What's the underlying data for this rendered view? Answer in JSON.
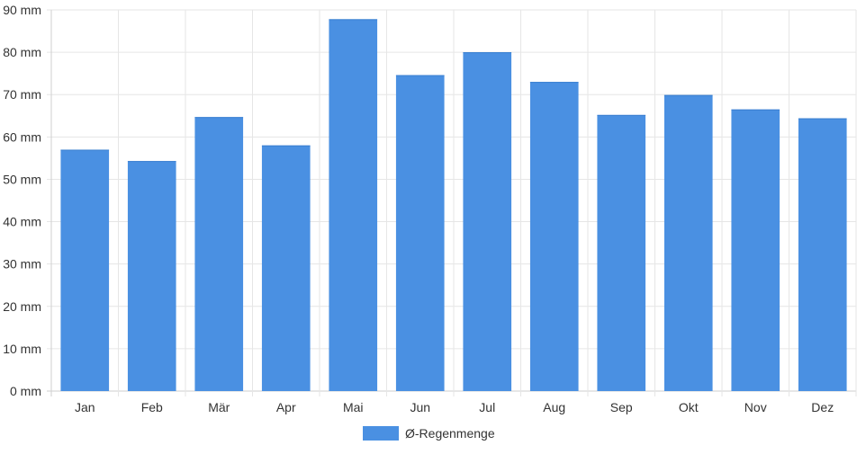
{
  "chart_data": {
    "type": "bar",
    "categories": [
      "Jan",
      "Feb",
      "Mär",
      "Apr",
      "Mai",
      "Jun",
      "Jul",
      "Aug",
      "Sep",
      "Okt",
      "Nov",
      "Dez"
    ],
    "series": [
      {
        "name": "Ø-Regenmenge",
        "values": [
          57,
          54.3,
          64.7,
          58,
          87.8,
          74.6,
          80,
          73,
          65.2,
          69.9,
          66.5,
          64.4
        ],
        "color": "#4a90e2"
      }
    ],
    "ylim": [
      0,
      90
    ],
    "yticks": [
      "0 mm",
      "10 mm",
      "20 mm",
      "30 mm",
      "40 mm",
      "50 mm",
      "60 mm",
      "70 mm",
      "80 mm",
      "90 mm"
    ],
    "grid": true,
    "legend_position": "bottom-center"
  }
}
